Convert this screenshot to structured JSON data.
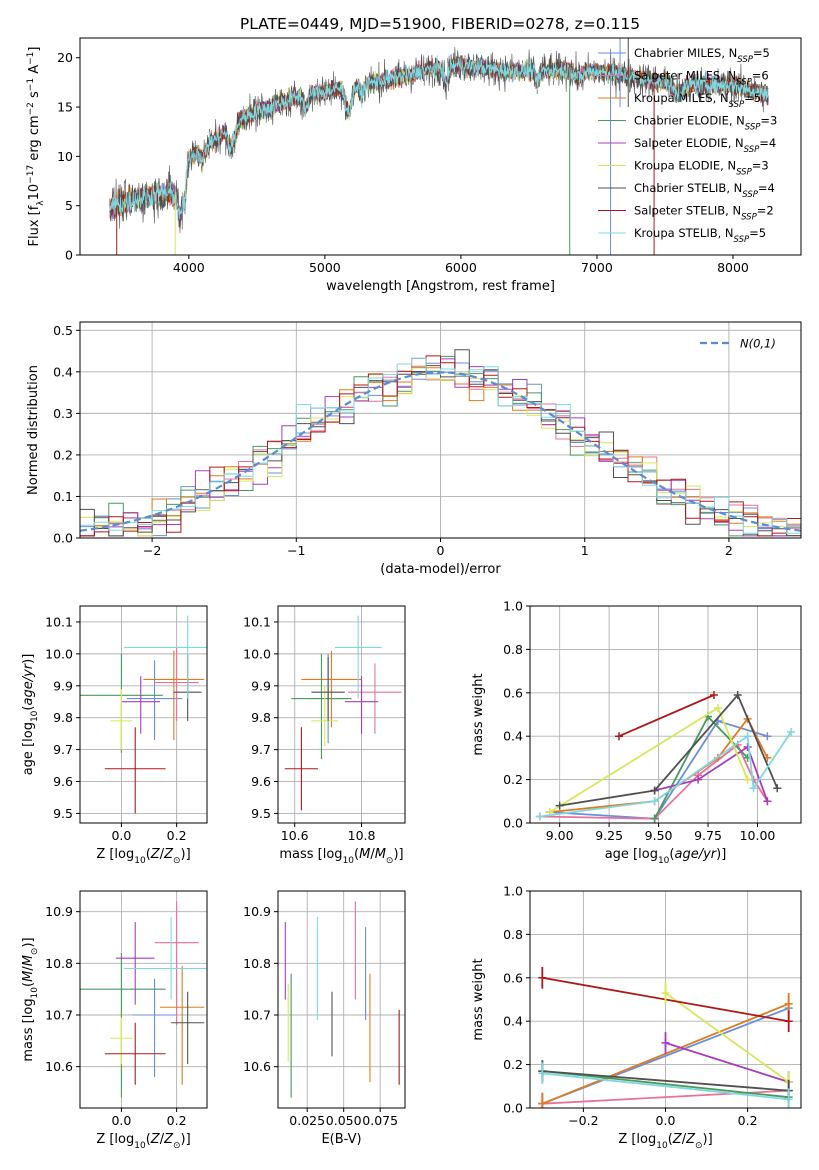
{
  "figure": {
    "title": "PLATE=0449, MJD=51900, FIBERID=0278, z=0.115"
  },
  "series": [
    {
      "name": "Chabrier MILES",
      "nssp": "5",
      "color": "#6a8fd8"
    },
    {
      "name": "Salpeter MILES",
      "nssp": "6",
      "color": "#e8719a"
    },
    {
      "name": "Kroupa MILES",
      "nssp": "5",
      "color": "#e07b1e"
    },
    {
      "name": "Chabrier ELODIE",
      "nssp": "3",
      "color": "#4a9a5c"
    },
    {
      "name": "Salpeter ELODIE",
      "nssp": "4",
      "color": "#a83cc0"
    },
    {
      "name": "Kroupa ELODIE",
      "nssp": "3",
      "color": "#d6e85a"
    },
    {
      "name": "Chabrier STELIB",
      "nssp": "4",
      "color": "#505050"
    },
    {
      "name": "Salpeter STELIB",
      "nssp": "2",
      "color": "#b01818"
    },
    {
      "name": "Kroupa STELIB",
      "nssp": "5",
      "color": "#7fd8e0"
    }
  ],
  "chart_data": [
    {
      "id": "spectrum",
      "type": "line",
      "xlabel": "wavelength [Angstrom, rest frame]",
      "ylabel": "Flux [f_λ10^-17 erg cm^-2 s^-1 A^-1]",
      "xlim": [
        3200,
        8500
      ],
      "ylim": [
        0,
        22
      ],
      "xticks": [
        4000,
        5000,
        6000,
        7000,
        8000
      ],
      "yticks": [
        0,
        5,
        10,
        15,
        20
      ],
      "grid": false,
      "legend": "top-right",
      "x_range": [
        3420,
        8260
      ],
      "continuum": [
        [
          3420,
          4.8
        ],
        [
          3600,
          5.6
        ],
        [
          3800,
          6.3
        ],
        [
          3950,
          6.0
        ],
        [
          4000,
          9.8
        ],
        [
          4200,
          11.8
        ],
        [
          4400,
          14.0
        ],
        [
          4600,
          15.0
        ],
        [
          4800,
          16.0
        ],
        [
          5000,
          16.6
        ],
        [
          5200,
          17.1
        ],
        [
          5400,
          17.6
        ],
        [
          5600,
          18.2
        ],
        [
          5800,
          18.9
        ],
        [
          6000,
          19.3
        ],
        [
          6200,
          18.9
        ],
        [
          6400,
          18.6
        ],
        [
          6600,
          18.7
        ],
        [
          6800,
          18.8
        ],
        [
          7000,
          18.6
        ],
        [
          7200,
          18.2
        ],
        [
          7400,
          17.7
        ],
        [
          7600,
          17.4
        ],
        [
          7800,
          17.3
        ],
        [
          8000,
          17.2
        ],
        [
          8260,
          16.2
        ]
      ],
      "absorption": [
        [
          3934,
          2.5,
          10
        ],
        [
          3969,
          2.0,
          10
        ],
        [
          4102,
          1.2,
          14
        ],
        [
          4304,
          2.2,
          18
        ],
        [
          4341,
          1.0,
          14
        ],
        [
          4861,
          1.4,
          14
        ],
        [
          5175,
          2.5,
          22
        ],
        [
          5270,
          1.0,
          16
        ],
        [
          5890,
          1.6,
          14
        ],
        [
          6563,
          1.2,
          14
        ],
        [
          6870,
          0.8,
          30
        ],
        [
          7600,
          1.0,
          40
        ]
      ]
    },
    {
      "id": "residuals",
      "type": "bar",
      "xlabel": "(data-model)/error",
      "ylabel": "Normed distribution",
      "xlim": [
        -2.5,
        2.5
      ],
      "ylim": [
        0,
        0.52
      ],
      "xticks": [
        -2,
        -1,
        0,
        1,
        2
      ],
      "yticks": [
        0.0,
        0.1,
        0.2,
        0.3,
        0.4,
        0.5
      ],
      "grid": true,
      "legend": "top-right",
      "legend_label": "N(0,1)",
      "bin_width": 0.1
    },
    {
      "id": "age-vs-Z",
      "type": "scatter",
      "xlabel": "Z [log10(Z/Z⊙)]",
      "ylabel": "age [log10(age/yr)]",
      "xlim": [
        -0.15,
        0.31
      ],
      "ylim": [
        9.47,
        10.15
      ],
      "xticks": [
        0.0,
        0.2
      ],
      "yticks": [
        9.5,
        9.6,
        9.7,
        9.8,
        9.9,
        10.0,
        10.1
      ],
      "grid": true,
      "points": [
        {
          "x": 0.12,
          "y": 9.86,
          "xerr": 0.1,
          "yerr_lo": 0.13,
          "yerr_hi": 0.12
        },
        {
          "x": 0.2,
          "y": 9.91,
          "xerr": 0.08,
          "yerr_lo": 0.12,
          "yerr_hi": 0.11
        },
        {
          "x": 0.19,
          "y": 9.92,
          "xerr": 0.11,
          "yerr_lo": 0.19,
          "yerr_hi": 0.09
        },
        {
          "x": 0.0,
          "y": 9.87,
          "xerr": 0.15,
          "yerr_lo": 0.18,
          "yerr_hi": 0.13
        },
        {
          "x": 0.07,
          "y": 9.85,
          "xerr": 0.07,
          "yerr_lo": 0.1,
          "yerr_hi": 0.08
        },
        {
          "x": 0.0,
          "y": 9.79,
          "xerr": 0.04,
          "yerr_lo": 0.09,
          "yerr_hi": 0.1
        },
        {
          "x": 0.24,
          "y": 9.88,
          "xerr": 0.05,
          "yerr_lo": 0.09,
          "yerr_hi": 0.12
        },
        {
          "x": 0.05,
          "y": 9.64,
          "xerr": 0.11,
          "yerr_lo": 0.14,
          "yerr_hi": 0.13
        },
        {
          "x": 0.24,
          "y": 10.02,
          "xerr": 0.23,
          "yerr_lo": 0.16,
          "yerr_hi": 0.1
        }
      ]
    },
    {
      "id": "age-vs-mass",
      "type": "scatter",
      "xlabel": "mass [log10(M/M⊙)]",
      "ylabel": "",
      "xlim": [
        10.55,
        10.93
      ],
      "ylim": [
        9.47,
        10.15
      ],
      "xticks": [
        10.6,
        10.8
      ],
      "yticks": [
        9.5,
        9.6,
        9.7,
        9.8,
        9.9,
        10.0,
        10.1
      ],
      "grid": true,
      "points": [
        {
          "x": 10.7,
          "y": 9.86,
          "xerr": 0.06,
          "yerr_lo": 0.14,
          "yerr_hi": 0.14
        },
        {
          "x": 10.84,
          "y": 9.88,
          "xerr": 0.08,
          "yerr_lo": 0.13,
          "yerr_hi": 0.09
        },
        {
          "x": 10.71,
          "y": 9.92,
          "xerr": 0.09,
          "yerr_lo": 0.15,
          "yerr_hi": 0.09
        },
        {
          "x": 10.68,
          "y": 9.86,
          "xerr": 0.09,
          "yerr_lo": 0.19,
          "yerr_hi": 0.14
        },
        {
          "x": 10.8,
          "y": 9.85,
          "xerr": 0.05,
          "yerr_lo": 0.1,
          "yerr_hi": 0.08
        },
        {
          "x": 10.69,
          "y": 9.79,
          "xerr": 0.04,
          "yerr_lo": 0.08,
          "yerr_hi": 0.11
        },
        {
          "x": 10.7,
          "y": 9.88,
          "xerr": 0.05,
          "yerr_lo": 0.09,
          "yerr_hi": 0.11
        },
        {
          "x": 10.62,
          "y": 9.64,
          "xerr": 0.05,
          "yerr_lo": 0.13,
          "yerr_hi": 0.13
        },
        {
          "x": 10.79,
          "y": 10.02,
          "xerr": 0.07,
          "yerr_lo": 0.16,
          "yerr_hi": 0.1
        }
      ]
    },
    {
      "id": "weight-vs-age",
      "type": "line",
      "xlabel": "age [log10(age/yr)]",
      "ylabel": "mass weight",
      "xlim": [
        8.85,
        10.22
      ],
      "ylim": [
        0,
        1
      ],
      "xticks": [
        9.0,
        9.25,
        9.5,
        9.75,
        10.0
      ],
      "yticks": [
        0.0,
        0.2,
        0.4,
        0.6,
        0.8,
        1.0
      ],
      "grid": true,
      "series": [
        {
          "points": [
            [
              8.95,
              0.05
            ],
            [
              9.48,
              0.02
            ],
            [
              9.8,
              0.47
            ],
            [
              10.05,
              0.4
            ]
          ]
        },
        {
          "points": [
            [
              8.9,
              0.03
            ],
            [
              9.48,
              0.02
            ],
            [
              9.7,
              0.22
            ],
            [
              9.9,
              0.36
            ],
            [
              9.98,
              0.2
            ],
            [
              10.05,
              0.1
            ]
          ]
        },
        {
          "points": [
            [
              8.95,
              0.05
            ],
            [
              9.48,
              0.1
            ],
            [
              9.8,
              0.3
            ],
            [
              9.95,
              0.48
            ],
            [
              10.05,
              0.3
            ]
          ]
        },
        {
          "points": [
            [
              9.48,
              0.02
            ],
            [
              9.75,
              0.49
            ],
            [
              9.95,
              0.3
            ]
          ]
        },
        {
          "points": [
            [
              9.48,
              0.15
            ],
            [
              9.7,
              0.2
            ],
            [
              9.95,
              0.35
            ],
            [
              10.05,
              0.1
            ]
          ]
        },
        {
          "points": [
            [
              8.95,
              0.05
            ],
            [
              9.8,
              0.53
            ],
            [
              9.95,
              0.2
            ]
          ]
        },
        {
          "points": [
            [
              9.0,
              0.08
            ],
            [
              9.48,
              0.15
            ],
            [
              9.9,
              0.59
            ],
            [
              10.1,
              0.16
            ]
          ]
        },
        {
          "points": [
            [
              9.3,
              0.4
            ],
            [
              9.78,
              0.59
            ]
          ]
        },
        {
          "points": [
            [
              8.9,
              0.03
            ],
            [
              9.48,
              0.1
            ],
            [
              9.95,
              0.4
            ],
            [
              9.98,
              0.16
            ],
            [
              10.17,
              0.42
            ]
          ]
        }
      ]
    },
    {
      "id": "mass-vs-Z",
      "type": "scatter",
      "xlabel": "Z [log10(Z/Z⊙)]",
      "ylabel": "mass [log10(M/M⊙)]",
      "xlim": [
        -0.15,
        0.31
      ],
      "ylim": [
        10.52,
        10.94
      ],
      "xticks": [
        0.0,
        0.2
      ],
      "yticks": [
        10.6,
        10.7,
        10.8,
        10.9
      ],
      "grid": true,
      "points": [
        {
          "x": 0.12,
          "y": 10.7,
          "xerr": 0.08,
          "yerr_lo": 0.12,
          "yerr_hi": 0.07
        },
        {
          "x": 0.2,
          "y": 10.84,
          "xerr": 0.08,
          "yerr_lo": 0.16,
          "yerr_hi": 0.08
        },
        {
          "x": 0.22,
          "y": 10.715,
          "xerr": 0.08,
          "yerr_lo": 0.15,
          "yerr_hi": 0.08
        },
        {
          "x": 0.0,
          "y": 10.75,
          "xerr": 0.16,
          "yerr_lo": 0.21,
          "yerr_hi": 0.07
        },
        {
          "x": 0.05,
          "y": 10.81,
          "xerr": 0.07,
          "yerr_lo": 0.09,
          "yerr_hi": 0.07
        },
        {
          "x": 0.0,
          "y": 10.655,
          "xerr": 0.04,
          "yerr_lo": 0.05,
          "yerr_hi": 0.04
        },
        {
          "x": 0.24,
          "y": 10.685,
          "xerr": 0.06,
          "yerr_lo": 0.08,
          "yerr_hi": 0.06
        },
        {
          "x": 0.05,
          "y": 10.625,
          "xerr": 0.11,
          "yerr_lo": 0.06,
          "yerr_hi": 0.06
        },
        {
          "x": 0.18,
          "y": 10.79,
          "xerr": 0.17,
          "yerr_lo": 0.06,
          "yerr_hi": 0.1
        }
      ]
    },
    {
      "id": "mass-vs-ebv",
      "type": "scatter",
      "xlabel": "E(B-V)",
      "ylabel": "",
      "xlim": [
        0.005,
        0.092
      ],
      "ylim": [
        10.52,
        10.94
      ],
      "xticks": [
        0.025,
        0.05,
        0.075
      ],
      "yticks": [
        10.6,
        10.7,
        10.8,
        10.9
      ],
      "grid": true,
      "points": [
        {
          "x": 0.065,
          "y": 10.78,
          "yerr_lo": 0.09,
          "yerr_hi": 0.09
        },
        {
          "x": 0.058,
          "y": 10.81,
          "yerr_lo": 0.08,
          "yerr_hi": 0.11
        },
        {
          "x": 0.068,
          "y": 10.69,
          "yerr_lo": 0.12,
          "yerr_hi": 0.09
        },
        {
          "x": 0.014,
          "y": 10.66,
          "yerr_lo": 0.12,
          "yerr_hi": 0.12
        },
        {
          "x": 0.01,
          "y": 10.8,
          "yerr_lo": 0.07,
          "yerr_hi": 0.08
        },
        {
          "x": 0.012,
          "y": 10.68,
          "yerr_lo": 0.07,
          "yerr_hi": 0.08
        },
        {
          "x": 0.042,
          "y": 10.68,
          "yerr_lo": 0.06,
          "yerr_hi": 0.065
        },
        {
          "x": 0.088,
          "y": 10.635,
          "yerr_lo": 0.07,
          "yerr_hi": 0.075
        },
        {
          "x": 0.032,
          "y": 10.79,
          "yerr_lo": 0.1,
          "yerr_hi": 0.1
        }
      ]
    },
    {
      "id": "weight-vs-Z",
      "type": "line",
      "xlabel": "Z [log10(Z/Z⊙)]",
      "ylabel": "mass weight",
      "xlim": [
        -0.33,
        0.33
      ],
      "ylim": [
        0,
        1
      ],
      "xticks": [
        -0.2,
        0.0,
        0.2
      ],
      "yticks": [
        0.0,
        0.2,
        0.4,
        0.6,
        0.8,
        1.0
      ],
      "grid": true,
      "series": [
        {
          "points": [
            [
              -0.3,
              0.02
            ],
            [
              0.3,
              0.46
            ]
          ]
        },
        {
          "points": [
            [
              -0.3,
              0.02
            ],
            [
              0.3,
              0.08
            ]
          ]
        },
        {
          "points": [
            [
              -0.3,
              0.02
            ],
            [
              0.3,
              0.48
            ]
          ]
        },
        {
          "points": [
            [
              -0.3,
              0.17
            ],
            [
              0.3,
              0.05
            ]
          ]
        },
        {
          "points": [
            [
              0.0,
              0.3
            ],
            [
              0.3,
              0.12
            ]
          ]
        },
        {
          "points": [
            [
              0.0,
              0.53
            ],
            [
              0.3,
              0.12
            ]
          ]
        },
        {
          "points": [
            [
              -0.3,
              0.17
            ],
            [
              0.3,
              0.08
            ]
          ]
        },
        {
          "points": [
            [
              -0.3,
              0.6
            ],
            [
              0.3,
              0.4
            ]
          ]
        },
        {
          "points": [
            [
              -0.3,
              0.16
            ],
            [
              0.3,
              0.04
            ]
          ]
        }
      ]
    }
  ]
}
